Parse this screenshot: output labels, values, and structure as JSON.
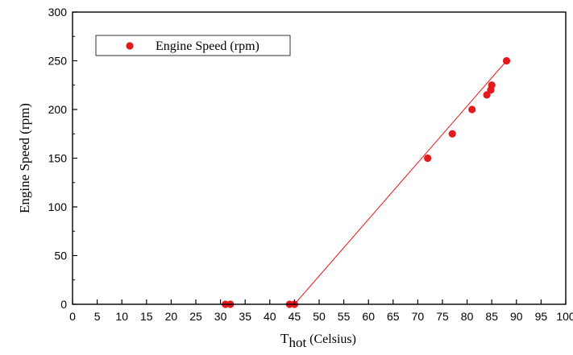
{
  "chart_data": {
    "type": "scatter",
    "xlabel_main": "T",
    "xlabel_sub": "hot",
    "xlabel_unit": " (Celsius)",
    "ylabel": "Engine Speed (rpm)",
    "xlim": [
      0,
      100
    ],
    "ylim": [
      0,
      300
    ],
    "x_ticks": [
      "0",
      "5",
      "10",
      "15",
      "20",
      "25",
      "30",
      "35",
      "40",
      "45",
      "50",
      "55",
      "60",
      "65",
      "70",
      "75",
      "80",
      "85",
      "90",
      "95",
      "100"
    ],
    "y_ticks": [
      "0",
      "50",
      "100",
      "150",
      "200",
      "250",
      "300"
    ],
    "grid": false,
    "legend_position": "top-left",
    "series": [
      {
        "name": "Engine Speed (rpm)",
        "color": "#e31a1c",
        "marker": "circle",
        "points": [
          {
            "x": 31,
            "y": 0
          },
          {
            "x": 32,
            "y": 0
          },
          {
            "x": 44,
            "y": 0
          },
          {
            "x": 45,
            "y": 0
          },
          {
            "x": 72,
            "y": 150
          },
          {
            "x": 77,
            "y": 175
          },
          {
            "x": 81,
            "y": 200
          },
          {
            "x": 84,
            "y": 215
          },
          {
            "x": 84.8,
            "y": 220
          },
          {
            "x": 85,
            "y": 225
          },
          {
            "x": 88,
            "y": 250
          }
        ]
      }
    ],
    "fit_line": {
      "color": "#e31a1c",
      "from": {
        "x": 45,
        "y": 0
      },
      "to": {
        "x": 88,
        "y": 250
      }
    }
  }
}
